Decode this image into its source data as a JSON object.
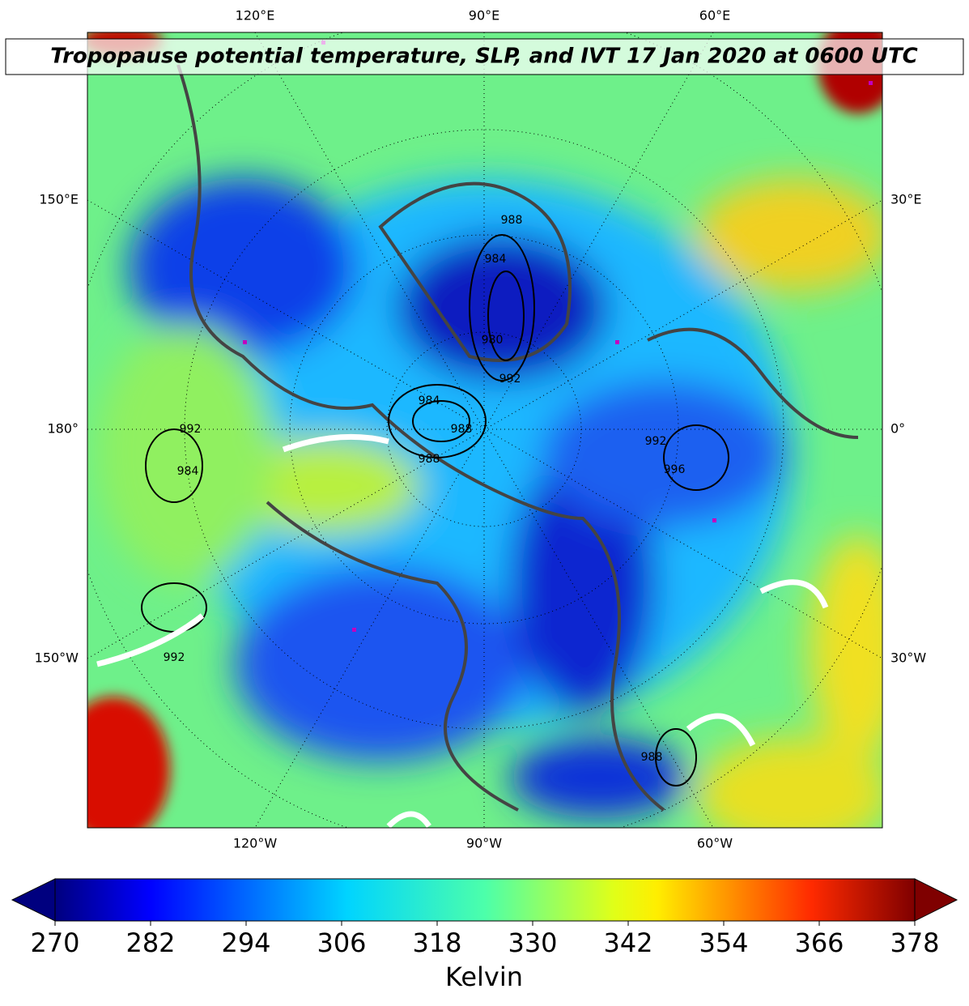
{
  "title": "Tropopause potential temperature, SLP, and IVT 17 Jan 2020 at 0600 UTC",
  "map": {
    "lon_labels_top": [
      "120°E",
      "90°E",
      "60°E"
    ],
    "lon_labels_bottom": [
      "120°W",
      "90°W",
      "60°W"
    ],
    "lon_labels_left": [
      "150°E",
      "180°",
      "150°W"
    ],
    "lon_labels_right": [
      "30°E",
      "0°",
      "30°W"
    ],
    "contour_labels": [
      988,
      984,
      980,
      992,
      984,
      988,
      992,
      988,
      984,
      992,
      996,
      992,
      988
    ]
  },
  "colorbar": {
    "clim": [
      270,
      378
    ],
    "ticks": [
      270,
      282,
      294,
      306,
      318,
      330,
      342,
      354,
      366,
      378
    ],
    "label": "Kelvin",
    "extend": "both"
  }
}
